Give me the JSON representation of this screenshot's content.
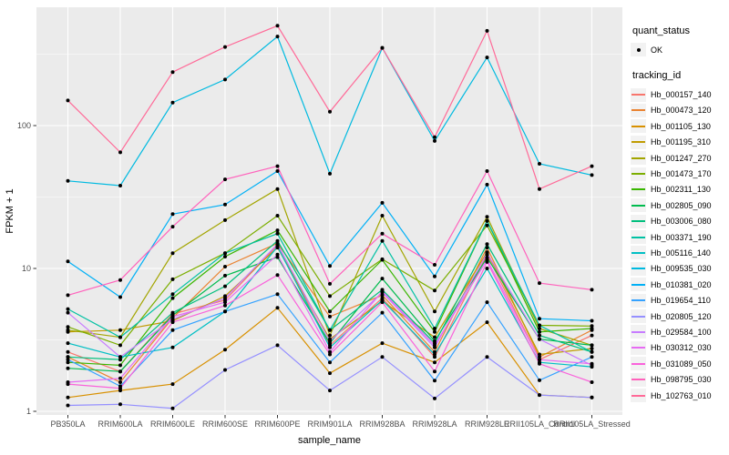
{
  "chart_data": {
    "type": "line",
    "title": "",
    "xlabel": "sample_name",
    "ylabel": "FPKM + 1",
    "y_scale": "log10",
    "y_ticks": [
      1,
      10,
      100
    ],
    "y_minor_ticks": [
      3.1623,
      31.623,
      316.23
    ],
    "ylim": [
      0.94,
      660
    ],
    "grid": "on",
    "legend_position": "right",
    "panel_bg": "#EBEBEB",
    "grid_color": "#FFFFFF",
    "tick_label_color": "#4D4D4D",
    "axis_title_color": "#000000",
    "point_color": "#000000",
    "legend": {
      "quant_status_title": "quant_status",
      "ok_label": "OK",
      "tracking_id_title": "tracking_id"
    },
    "x_categories": [
      "PB350LA",
      "RRIM600LA",
      "RRIM600LE",
      "RRIM600SE",
      "RRIM600PE",
      "RRIM901LA",
      "RRIM928BA",
      "RRIM928LA",
      "RRIM928LE",
      "RRII105LA_Control",
      "RRII105LA_Stressed"
    ],
    "series": [
      {
        "name": "Hb_000157_140",
        "color": "#F8766D",
        "values": [
          2.6,
          1.9,
          4.8,
          6.0,
          14.5,
          2.9,
          6.2,
          2.4,
          12.5,
          2.3,
          3.4
        ]
      },
      {
        "name": "Hb_000473_120",
        "color": "#EA8331",
        "values": [
          2.4,
          1.6,
          4.5,
          10.3,
          15.0,
          4.6,
          6.5,
          2.6,
          14.0,
          2.4,
          3.7
        ]
      },
      {
        "name": "Hb_001105_130",
        "color": "#D89000",
        "values": [
          1.25,
          1.4,
          1.55,
          2.7,
          5.3,
          1.85,
          3.0,
          2.2,
          4.2,
          1.3,
          1.25
        ]
      },
      {
        "name": "Hb_001195_310",
        "color": "#C09B00",
        "values": [
          3.6,
          3.7,
          4.3,
          6.4,
          14.0,
          3.2,
          5.9,
          3.3,
          13.0,
          2.5,
          2.75
        ]
      },
      {
        "name": "Hb_001247_270",
        "color": "#A3A500",
        "values": [
          3.7,
          3.3,
          12.8,
          21.8,
          36.0,
          3.4,
          23.4,
          5.0,
          23.0,
          3.8,
          2.9
        ]
      },
      {
        "name": "Hb_001473_170",
        "color": "#7CAE00",
        "values": [
          3.9,
          2.9,
          8.4,
          12.8,
          23.4,
          6.4,
          11.6,
          7.0,
          20.0,
          4.0,
          3.95
        ]
      },
      {
        "name": "Hb_002311_130",
        "color": "#39B600",
        "values": [
          2.2,
          2.1,
          6.2,
          12.1,
          18.5,
          5.0,
          11.5,
          3.6,
          21.5,
          3.6,
          3.8
        ]
      },
      {
        "name": "Hb_002805_090",
        "color": "#00BB4E",
        "values": [
          2.0,
          1.9,
          4.7,
          8.9,
          12.0,
          3.0,
          8.5,
          3.1,
          11.9,
          3.2,
          2.9
        ]
      },
      {
        "name": "Hb_003006_080",
        "color": "#00BF7D",
        "values": [
          2.4,
          2.3,
          4.9,
          7.5,
          15.6,
          3.7,
          7.1,
          3.0,
          14.8,
          3.4,
          2.6
        ]
      },
      {
        "name": "Hb_003371_190",
        "color": "#00C1A3",
        "values": [
          5.2,
          3.3,
          6.6,
          12.8,
          17.5,
          3.7,
          15.6,
          3.8,
          21.5,
          4.0,
          2.6
        ]
      },
      {
        "name": "Hb_005116_140",
        "color": "#00BFC4",
        "values": [
          3.0,
          2.4,
          2.8,
          5.0,
          14.2,
          2.8,
          6.0,
          2.5,
          10.0,
          2.2,
          2.05
        ]
      },
      {
        "name": "Hb_009535_030",
        "color": "#00BAE0",
        "values": [
          41,
          38,
          145,
          210,
          420,
          46,
          350,
          78,
          300,
          54,
          45
        ]
      },
      {
        "name": "Hb_010381_020",
        "color": "#00B0F6",
        "values": [
          11.2,
          6.3,
          24,
          28,
          48,
          10.4,
          28.8,
          8.8,
          38.6,
          4.45,
          4.3
        ]
      },
      {
        "name": "Hb_019654_110",
        "color": "#35A2FF",
        "values": [
          2.3,
          1.5,
          3.7,
          5.0,
          6.6,
          2.2,
          4.9,
          1.64,
          5.8,
          1.65,
          2.4
        ]
      },
      {
        "name": "Hb_020805_120",
        "color": "#9590FF",
        "values": [
          1.1,
          1.12,
          1.05,
          1.95,
          2.9,
          1.4,
          2.4,
          1.23,
          2.4,
          1.3,
          1.25
        ]
      },
      {
        "name": "Hb_029584_100",
        "color": "#C77CFF",
        "values": [
          4.9,
          2.4,
          4.4,
          6.2,
          14.8,
          3.1,
          6.8,
          2.8,
          12.8,
          3.2,
          2.1
        ]
      },
      {
        "name": "Hb_030312_030",
        "color": "#E76BF3",
        "values": [
          1.6,
          1.7,
          4.6,
          5.8,
          12.5,
          2.6,
          6.9,
          2.9,
          11.5,
          2.3,
          2.15
        ]
      },
      {
        "name": "Hb_031089_050",
        "color": "#FA62DB",
        "values": [
          1.55,
          1.45,
          4.2,
          5.5,
          9.0,
          2.5,
          5.8,
          1.9,
          11.1,
          2.15,
          1.6
        ]
      },
      {
        "name": "Hb_098795_030",
        "color": "#FF62BC",
        "values": [
          6.5,
          8.3,
          19.6,
          42,
          52,
          7.8,
          17.5,
          10.6,
          48,
          7.9,
          7.1
        ]
      },
      {
        "name": "Hb_102763_010",
        "color": "#FF6A98",
        "values": [
          150,
          65,
          237,
          355,
          500,
          125,
          350,
          83,
          460,
          36,
          52
        ]
      }
    ]
  }
}
